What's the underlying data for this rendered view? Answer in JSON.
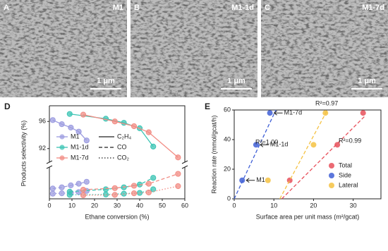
{
  "panels": [
    {
      "letter": "A",
      "label": "M1",
      "scale": "1 μm"
    },
    {
      "letter": "B",
      "label": "M1-1d",
      "scale": "1 μm"
    },
    {
      "letter": "C",
      "label": "M1-7d",
      "scale": "1 μm"
    }
  ],
  "chart_data": [
    {
      "type": "line",
      "letter": "D",
      "xlabel": "Ethane conversion (%)",
      "ylabel": "Products selectivity (%)",
      "xlim": [
        0,
        60
      ],
      "xticks": [
        0,
        10,
        20,
        30,
        40,
        50,
        60
      ],
      "ylim": [
        90,
        98
      ],
      "yticks": [
        92,
        96
      ],
      "ylim_lower": [
        0,
        8
      ],
      "line_styles": [
        {
          "label": "C₂H₄",
          "dash": "solid"
        },
        {
          "label": "CO",
          "dash": "dashed"
        },
        {
          "label": "CO₂",
          "dash": "dotted"
        }
      ],
      "series": [
        {
          "name": "M1",
          "color": "#9c9ce0",
          "x": [
            1.5,
            5.5,
            9.5,
            13,
            16.5
          ],
          "c2h4": [
            96.2,
            95.6,
            95.1,
            94.5,
            93.2
          ],
          "co": [
            2.6,
            2.9,
            3.4,
            3.8,
            4.3
          ],
          "co2": [
            1.3,
            1.4,
            1.5,
            1.7,
            2.0
          ]
        },
        {
          "name": "M1-1d",
          "color": "#3cc4b4",
          "x": [
            9,
            25,
            33,
            40,
            46
          ],
          "c2h4": [
            97.1,
            96.4,
            95.8,
            95.0,
            92.3
          ],
          "co": [
            1.8,
            2.4,
            2.9,
            3.6,
            5.3
          ],
          "co2": [
            1.0,
            1.1,
            1.3,
            1.5,
            2.4
          ]
        },
        {
          "name": "M1-7d",
          "color": "#f28c84",
          "x": [
            15,
            29,
            37.5,
            44,
            57
          ],
          "c2h4": [
            97.0,
            96.0,
            95.3,
            94.4,
            90.7
          ],
          "co": [
            2.3,
            2.7,
            3.3,
            3.8,
            6.3
          ],
          "co2": [
            0.9,
            1.0,
            1.4,
            1.6,
            3.2
          ]
        }
      ]
    },
    {
      "type": "scatter",
      "letter": "E",
      "xlabel": "Surface area per unit mass (m²/gcat)",
      "ylabel": "Reaction rate (mmol/gcat/h)",
      "xlim": [
        0,
        37
      ],
      "xticks": [
        0,
        10,
        20,
        30
      ],
      "ylim": [
        0,
        60
      ],
      "yticks": [
        0,
        20,
        40,
        60
      ],
      "legend": "lower right",
      "series": [
        {
          "name": "Total",
          "color": "#e8505b",
          "x": [
            14,
            26,
            32.5
          ],
          "y": [
            12.5,
            36.5,
            58
          ],
          "fit": {
            "x": [
              12,
              33
            ],
            "y": [
              0,
              56
            ]
          },
          "r2": "R²=0.99"
        },
        {
          "name": "Side",
          "color": "#3f5fd6",
          "x": [
            2,
            5.5,
            9
          ],
          "y": [
            12.5,
            36.5,
            58
          ],
          "fit": {
            "x": [
              0,
              10.5
            ],
            "y": [
              0,
              60
            ]
          },
          "r2": "R²=1.00",
          "annotations": [
            "M1",
            "M1-1d",
            "M1-7d"
          ]
        },
        {
          "name": "Lateral",
          "color": "#f5c242",
          "x": [
            8.5,
            20,
            23
          ],
          "y": [
            12.5,
            36.5,
            58
          ],
          "fit": {
            "x": [
              11.5,
              23.5
            ],
            "y": [
              0,
              60
            ]
          },
          "r2": "R²=0.97"
        }
      ]
    }
  ]
}
